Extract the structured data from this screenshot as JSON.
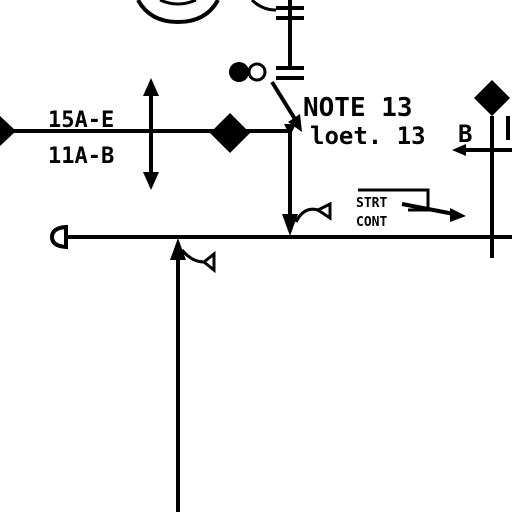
{
  "labels": {
    "line_upper": "15A-E",
    "line_lower": "11A-B",
    "note_line1": "NOTE 13",
    "note_line2": "loet. 13",
    "tag_b": "B",
    "stamp_line1": "STRT",
    "stamp_line2": "CONT"
  },
  "colors": {
    "ink": "#000000",
    "paper": "#ffffff"
  }
}
